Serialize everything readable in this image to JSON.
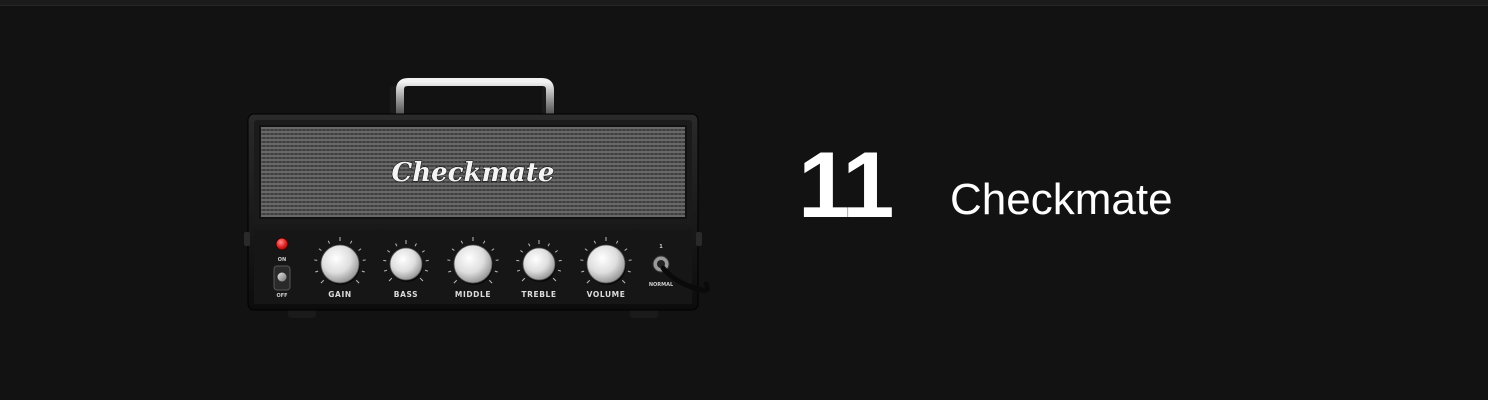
{
  "item": {
    "rank": "11",
    "name": "Checkmate",
    "logo_text": "Checkmate"
  },
  "amp": {
    "power_on_label": "ON",
    "power_off_label": "OFF",
    "knobs": [
      "GAIN",
      "BASS",
      "MIDDLE",
      "TREBLE",
      "VOLUME"
    ],
    "input_number": "1",
    "input_label": "NORMAL"
  },
  "colors": {
    "background": "#121212",
    "text": "#ffffff",
    "power_led": "#e02020"
  }
}
